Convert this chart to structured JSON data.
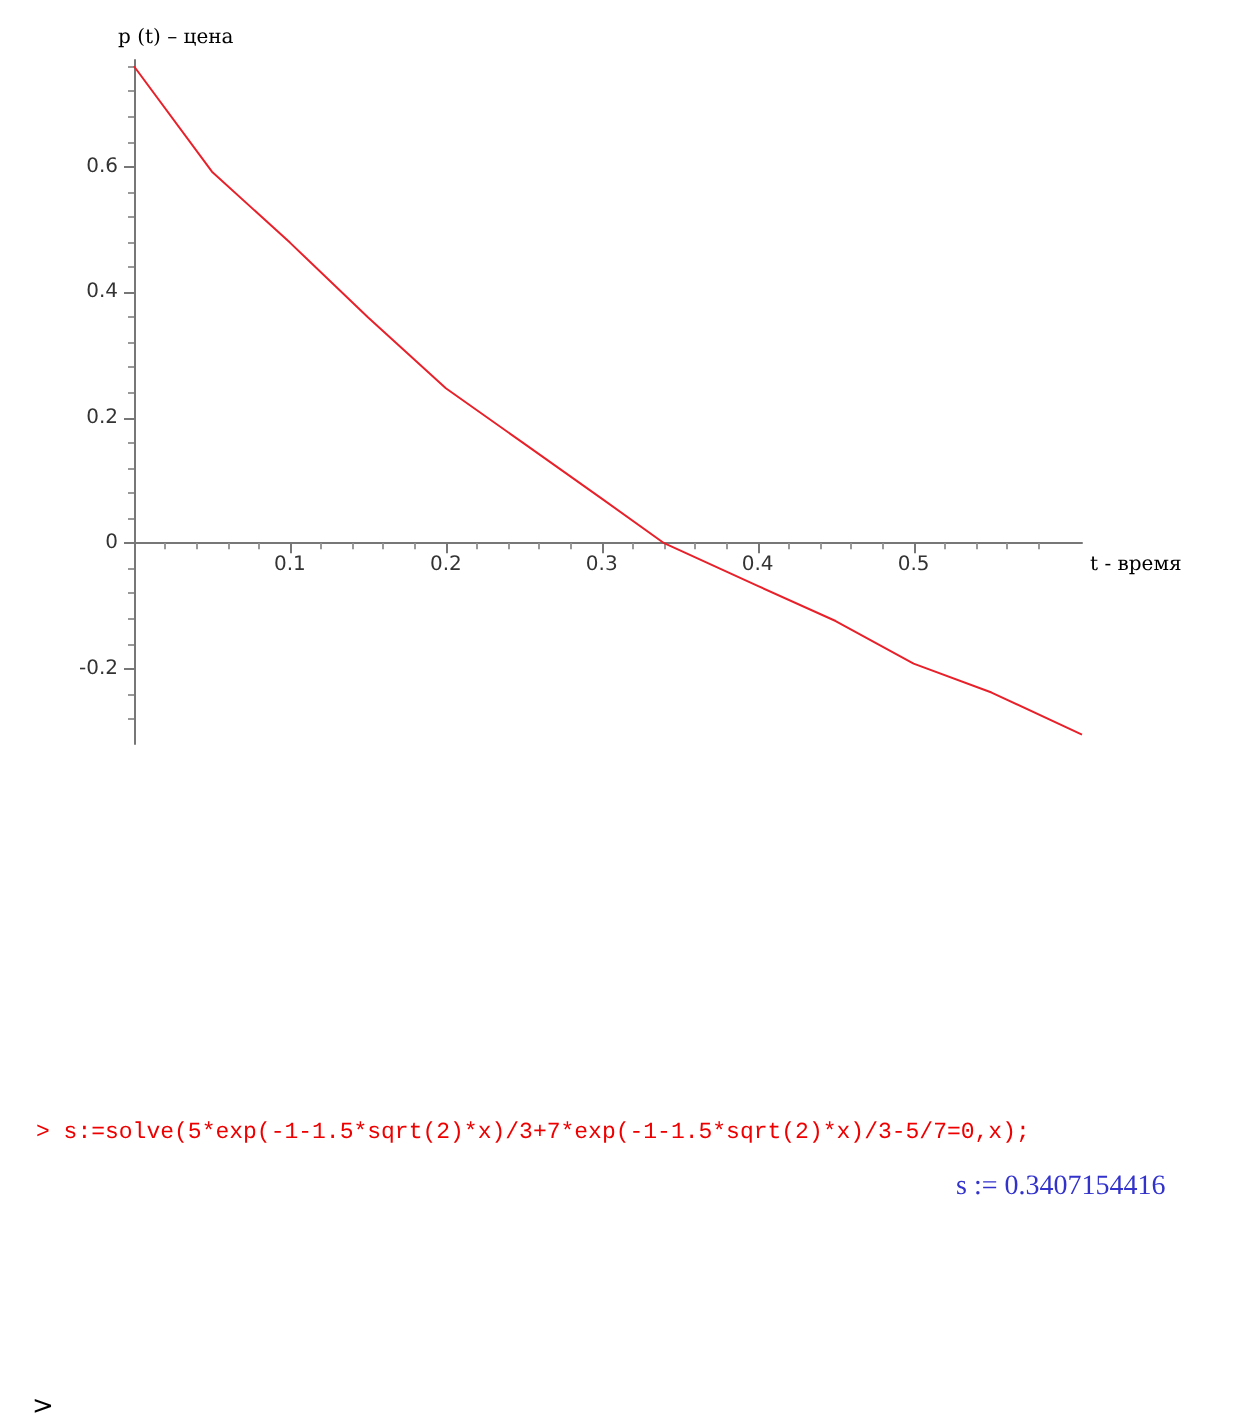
{
  "chart_data": {
    "type": "line",
    "xlabel": "t - время",
    "ylabel": "p (t) – цена",
    "x": [
      0,
      0.05,
      0.1,
      0.15,
      0.2,
      0.25,
      0.3,
      0.34,
      0.4,
      0.45,
      0.5,
      0.55,
      0.608
    ],
    "series": [
      {
        "color": "#e8202a",
        "values": [
          0.76,
          0.592,
          0.479,
          0.36,
          0.247,
          0.159,
          0.071,
          0,
          -0.068,
          -0.124,
          -0.192,
          -0.238,
          -0.305
        ]
      }
    ],
    "xlim": [
      0,
      0.608
    ],
    "ylim": [
      -0.32,
      0.77
    ],
    "xticks": [
      0.1,
      0.2,
      0.3,
      0.4,
      0.5
    ],
    "yticks": [
      -0.2,
      0,
      0.2,
      0.4,
      0.6
    ],
    "marker": "none",
    "line_style": "solid",
    "annotations": [
      "> s:=solve(5*exp(-1-1.5*sqrt(2)*x)/3+7*exp(-1-1.5*sqrt(2)*x)/3-5/7=0,x);",
      "s := 0.3407154416",
      ">"
    ]
  }
}
